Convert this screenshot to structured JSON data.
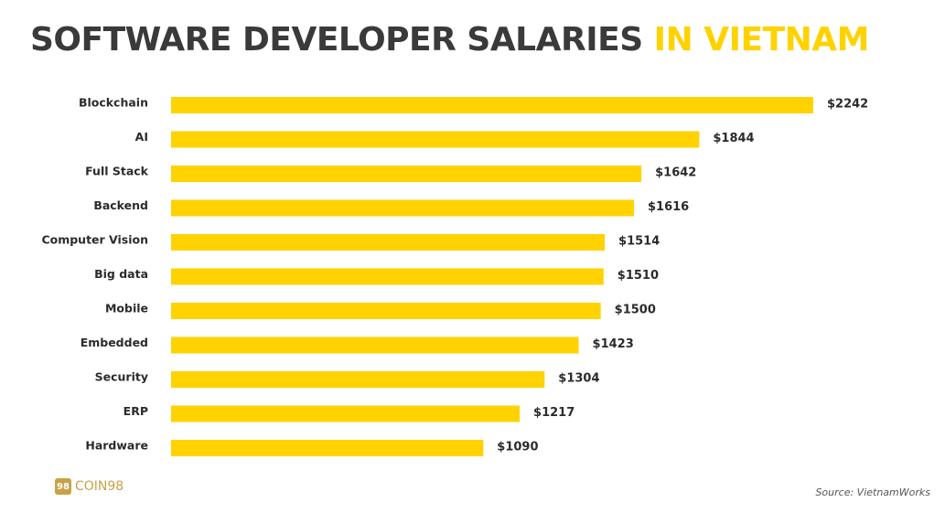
{
  "title": {
    "part1": "SOFTWARE DEVELOPER SALARIES",
    "part2": "IN VIETNAM"
  },
  "colors": {
    "bar": "#FFD200",
    "title_dark": "#3a3a3a",
    "title_accent": "#FFD200",
    "logo": "#C9A247"
  },
  "chart_data": {
    "type": "bar",
    "orientation": "horizontal",
    "title": "SOFTWARE DEVELOPER SALARIES IN VIETNAM",
    "categories": [
      "Blockchain",
      "AI",
      "Full Stack",
      "Backend",
      "Computer Vision",
      "Big data",
      "Mobile",
      "Embedded",
      "Security",
      "ERP",
      "Hardware"
    ],
    "values": [
      2242,
      1844,
      1642,
      1616,
      1514,
      1510,
      1500,
      1423,
      1304,
      1217,
      1090
    ],
    "value_labels": [
      "$2242",
      "$1844",
      "$1642",
      "$1616",
      "$1514",
      "$1510",
      "$1500",
      "$1423",
      "$1304",
      "$1217",
      "$1090"
    ],
    "xlabel": "",
    "ylabel": "",
    "xlim": [
      0,
      2242
    ],
    "grid": false
  },
  "logo": {
    "badge": "98",
    "text": "COIN98"
  },
  "source": "Source: VietnamWorks"
}
